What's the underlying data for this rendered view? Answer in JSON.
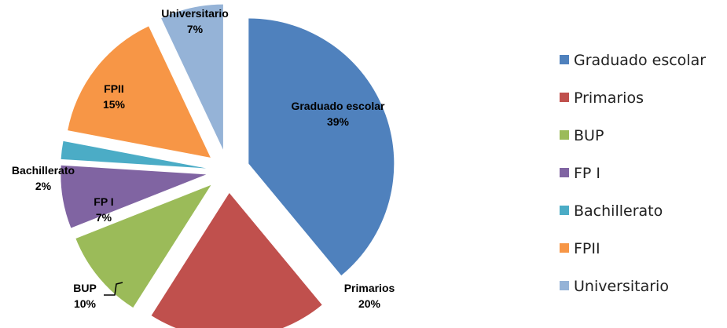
{
  "chart_data": {
    "type": "pie",
    "categories": [
      "Graduado escolar",
      "Primarios",
      "BUP",
      "FP I",
      "Bachillerato",
      "FPII",
      "Universitario"
    ],
    "values": [
      39,
      20,
      10,
      7,
      2,
      15,
      7
    ],
    "value_labels": [
      "39%",
      "20%",
      "10%",
      "7%",
      "2%",
      "15%",
      "7%"
    ],
    "colors": [
      "#4f81bd",
      "#c0504d",
      "#9bbb59",
      "#8064a2",
      "#4bacc6",
      "#f79646",
      "#95b3d7"
    ],
    "legend": "right"
  }
}
